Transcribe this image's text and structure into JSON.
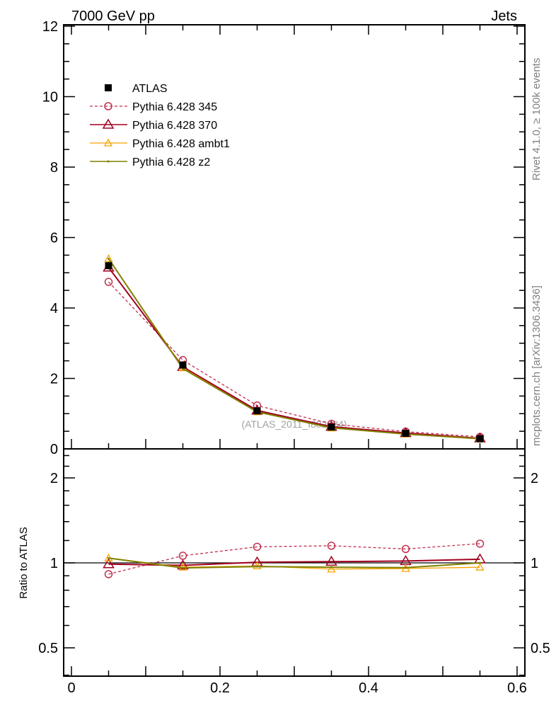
{
  "header": {
    "left": "7000 GeV pp",
    "right": "Jets"
  },
  "side_labels": {
    "rivet": "Rivet 4.1.0, ≥ 100k events",
    "mcplots": "mcplots.cern.ch [arXiv:1306.3436]"
  },
  "watermark": "(ATLAS_2011_I882984)",
  "chart_data": [
    {
      "type": "line",
      "panel": "main",
      "x": [
        0.05,
        0.15,
        0.25,
        0.35,
        0.45,
        0.55
      ],
      "xlim": [
        -0.01,
        0.61
      ],
      "ylim": [
        0,
        12
      ],
      "ytick_labels": [
        "0",
        "2",
        "4",
        "6",
        "8",
        "10",
        "12"
      ],
      "grid": false,
      "legend_placement": "top-left",
      "series": [
        {
          "name": "ATLAS",
          "color": "#000000",
          "values": [
            5.2,
            2.38,
            1.08,
            0.62,
            0.44,
            0.29
          ]
        },
        {
          "name": "Pythia 6.428 345",
          "color": "#c0304f",
          "values": [
            4.74,
            2.52,
            1.23,
            0.71,
            0.49,
            0.34
          ]
        },
        {
          "name": "Pythia 6.428 370",
          "color": "#a00020",
          "values": [
            5.15,
            2.33,
            1.09,
            0.63,
            0.45,
            0.3
          ]
        },
        {
          "name": "Pythia 6.428 ambt1",
          "color": "#f5a300",
          "values": [
            5.4,
            2.3,
            1.05,
            0.59,
            0.42,
            0.28
          ]
        },
        {
          "name": "Pythia 6.428 z2",
          "color": "#808000",
          "values": [
            5.4,
            2.28,
            1.05,
            0.6,
            0.42,
            0.29
          ]
        }
      ]
    },
    {
      "type": "line",
      "panel": "ratio",
      "ylabel": "Ratio to ATLAS",
      "yscale": "log",
      "ylim": [
        0.4,
        2.53
      ],
      "ytick_labels": [
        "0.5",
        "1",
        "2"
      ],
      "xtick_labels": [
        "0",
        "0.2",
        "0.4",
        "0.6"
      ],
      "x": [
        0.05,
        0.15,
        0.25,
        0.35,
        0.45,
        0.55
      ],
      "series": [
        {
          "name": "Pythia 6.428 345",
          "values": [
            0.912,
            1.06,
            1.14,
            1.15,
            1.12,
            1.17
          ]
        },
        {
          "name": "Pythia 6.428 370",
          "values": [
            0.99,
            0.98,
            1.005,
            1.01,
            1.015,
            1.03
          ]
        },
        {
          "name": "Pythia 6.428 ambt1",
          "values": [
            1.04,
            0.965,
            0.975,
            0.95,
            0.955,
            0.965
          ]
        },
        {
          "name": "Pythia 6.428 z2",
          "values": [
            1.04,
            0.96,
            0.97,
            0.965,
            0.962,
            1.0
          ]
        }
      ]
    }
  ]
}
